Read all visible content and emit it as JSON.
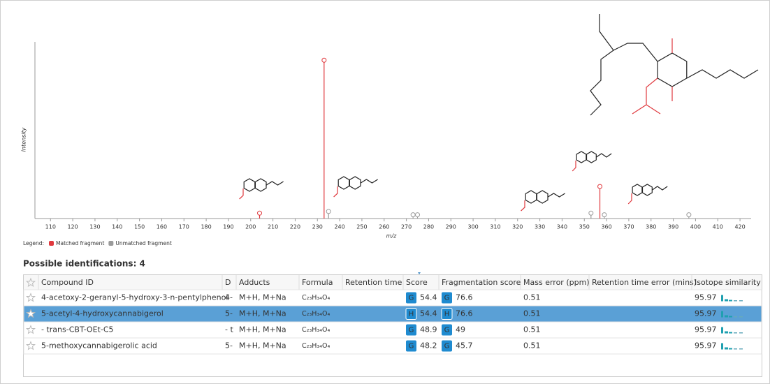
{
  "chart_data": {
    "type": "stem",
    "x_label": "m/z",
    "y_label": "Intensity",
    "xlim": [
      103,
      425
    ],
    "ylim": [
      0,
      100
    ],
    "xticks": [
      110,
      120,
      130,
      140,
      150,
      160,
      170,
      180,
      190,
      200,
      210,
      220,
      230,
      240,
      250,
      260,
      270,
      280,
      290,
      300,
      310,
      320,
      330,
      340,
      350,
      360,
      370,
      380,
      390,
      400,
      410,
      420
    ],
    "legend_title": "Legend:",
    "series": [
      {
        "name": "Matched fragment",
        "color": "#e0393e",
        "x": [
          204,
          233,
          357
        ],
        "values": [
          2,
          94,
          18
        ]
      },
      {
        "name": "Unmatched fragment",
        "color": "#9a9a9a",
        "x": [
          235,
          273,
          275,
          353,
          359,
          397
        ],
        "values": [
          3,
          1,
          1,
          2,
          1,
          1
        ]
      }
    ]
  },
  "table": {
    "title": "Possible identifications: 4",
    "columns": [
      "Compound ID",
      "D",
      "Adducts",
      "Formula",
      "Retention time",
      "Score",
      "Fragmentation score",
      "Mass error (ppm)",
      "Retention time error (mins)",
      "Isotope similarity"
    ],
    "rows": [
      {
        "compound": "4-acetoxy-2-geranyl-5-hydroxy-3-n-pentylphenol",
        "description": "4-",
        "adducts": "M+H, M+Na",
        "formula": "C₂₃H₃₄O₄",
        "score_badge": "G",
        "score": 54.4,
        "frag_badge": "G",
        "frag_score": 76.6,
        "mass_error": 0.51,
        "isotope": 95.97
      },
      {
        "compound": "5-acetyl-4-hydroxycannabigerol",
        "description": "5-",
        "adducts": "M+H, M+Na",
        "formula": "C₂₃H₃₄O₄",
        "score_badge": "H",
        "score": 54.4,
        "frag_badge": "H",
        "frag_score": 76.6,
        "mass_error": 0.51,
        "isotope": 95.97,
        "selected": true
      },
      {
        "compound": " - trans-CBT-OEt-C5",
        "description": "- t",
        "adducts": "M+H, M+Na",
        "formula": "C₂₃H₃₄O₄",
        "score_badge": "G",
        "score": 48.9,
        "frag_badge": "G",
        "frag_score": 49,
        "mass_error": 0.51,
        "isotope": 95.97
      },
      {
        "compound": "5-methoxycannabigerolic acid",
        "description": "5-",
        "adducts": "M+H, M+Na",
        "formula": "C₂₃H₃₄O₄",
        "score_badge": "G",
        "score": 48.2,
        "frag_badge": "G",
        "frag_score": 45.7,
        "mass_error": 0.51,
        "isotope": 95.97
      }
    ]
  }
}
